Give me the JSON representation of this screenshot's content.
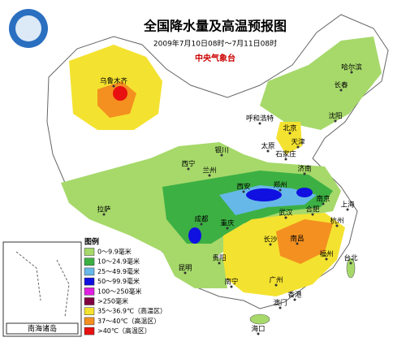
{
  "header": {
    "title": "全国降水量及高温预报图",
    "subtitle": "2009年7月10日08时～7月11日08时",
    "agency": "中央气象台"
  },
  "legend": {
    "title": "图例",
    "items": [
      {
        "label": "0～9.9毫米",
        "color": "#a6d96a"
      },
      {
        "label": "10～24.9毫米",
        "color": "#3cb043"
      },
      {
        "label": "25～49.9毫米",
        "color": "#66b8e8"
      },
      {
        "label": "50～99.9毫米",
        "color": "#1010e0"
      },
      {
        "label": "100～250毫米",
        "color": "#e020e0"
      },
      {
        "label": ">250毫米",
        "color": "#800040"
      },
      {
        "label": "35～36.9℃（高温区）",
        "color": "#f4e230"
      },
      {
        "label": "37～40℃（高温区）",
        "color": "#f39020"
      },
      {
        "label": ">40℃（高温区）",
        "color": "#e81010"
      }
    ]
  },
  "cities": [
    "乌鲁木齐",
    "哈尔滨",
    "长春",
    "沈阳",
    "呼和浩特",
    "北京",
    "天津",
    "银川",
    "石家庄",
    "太原",
    "济南",
    "西宁",
    "兰州",
    "西安",
    "郑州",
    "拉萨",
    "成都",
    "南京",
    "上海",
    "合肥",
    "武汉",
    "重庆",
    "杭州",
    "长沙",
    "南昌",
    "贵阳",
    "福州",
    "昆明",
    "台北",
    "南宁",
    "广州",
    "香港",
    "澳门",
    "海口"
  ],
  "inset": {
    "label": "南海诸岛"
  }
}
